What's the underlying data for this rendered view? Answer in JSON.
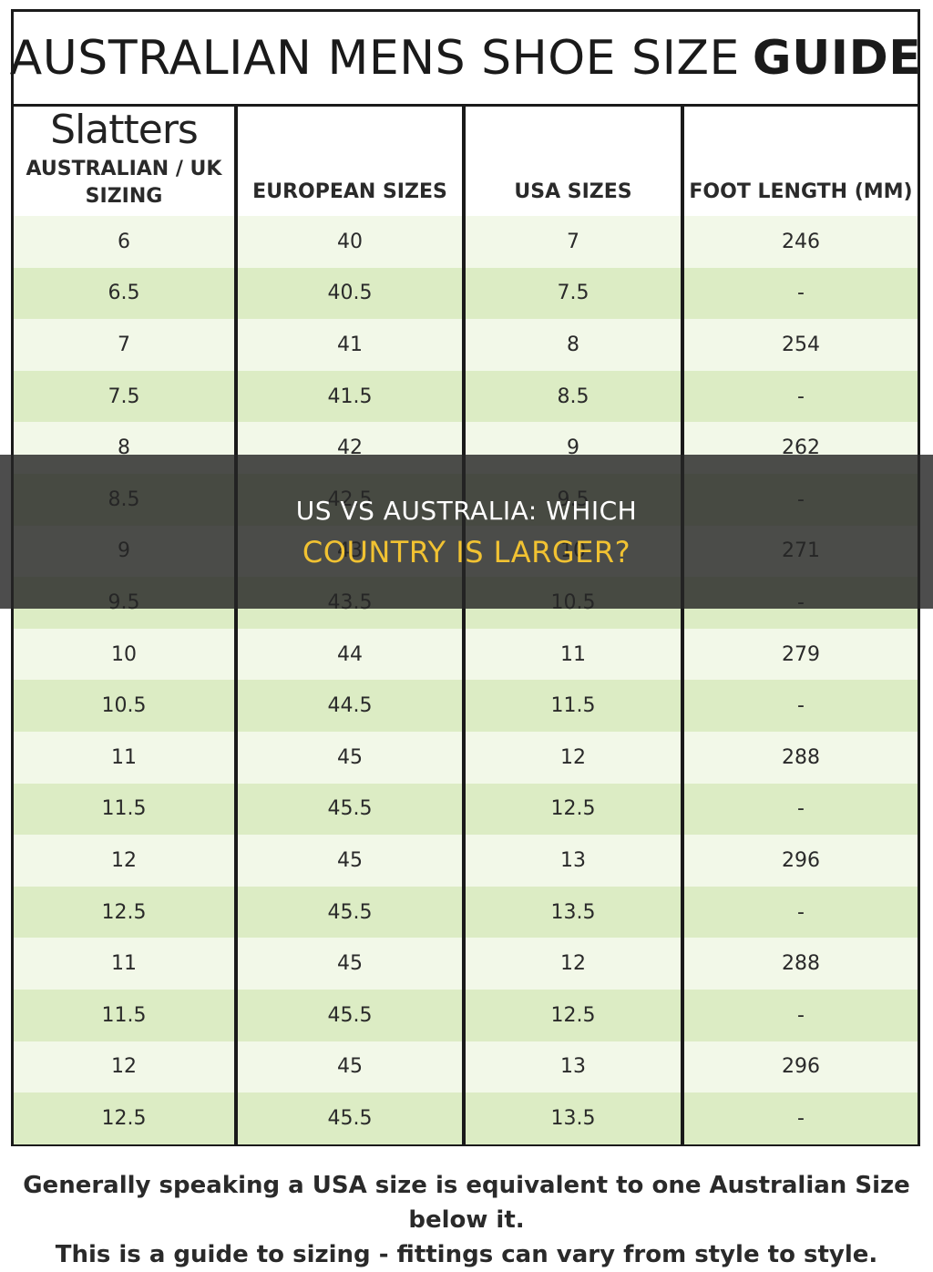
{
  "title": {
    "light": "AUSTRALIAN MENS SHOE SIZE",
    "bold": "GUIDE"
  },
  "brand": {
    "logo_text": "Slatters"
  },
  "headers": [
    "AUSTRALIAN / UK SIZING",
    "EUROPEAN SIZES",
    "USA SIZES",
    "FOOT LENGTH (MM)"
  ],
  "rows": [
    [
      "6",
      "40",
      "7",
      "246"
    ],
    [
      "6.5",
      "40.5",
      "7.5",
      "-"
    ],
    [
      "7",
      "41",
      "8",
      "254"
    ],
    [
      "7.5",
      "41.5",
      "8.5",
      "-"
    ],
    [
      "8",
      "42",
      "9",
      "262"
    ],
    [
      "8.5",
      "42.5",
      "9.5",
      "-"
    ],
    [
      "9",
      "43",
      "10",
      "271"
    ],
    [
      "9.5",
      "43.5",
      "10.5",
      "-"
    ],
    [
      "10",
      "44",
      "11",
      "279"
    ],
    [
      "10.5",
      "44.5",
      "11.5",
      "-"
    ],
    [
      "11",
      "45",
      "12",
      "288"
    ],
    [
      "11.5",
      "45.5",
      "12.5",
      "-"
    ],
    [
      "12",
      "45",
      "13",
      "296"
    ],
    [
      "12.5",
      "45.5",
      "13.5",
      "-"
    ],
    [
      "11",
      "45",
      "12",
      "288"
    ],
    [
      "11.5",
      "45.5",
      "12.5",
      "-"
    ],
    [
      "12",
      "45",
      "13",
      "296"
    ],
    [
      "12.5",
      "45.5",
      "13.5",
      "-"
    ]
  ],
  "footer": {
    "line1": "Generally speaking a USA size is equivalent to one Australian Size below it.",
    "line2": "This is a guide to sizing - fittings can vary from style to style."
  },
  "overlay": {
    "line1": "US VS AUSTRALIA: WHICH",
    "line2": "COUNTRY IS LARGER?"
  },
  "colors": {
    "row_light": "#f2f8e8",
    "row_dark": "#dcecc4",
    "overlay_accent": "#f1c232"
  }
}
